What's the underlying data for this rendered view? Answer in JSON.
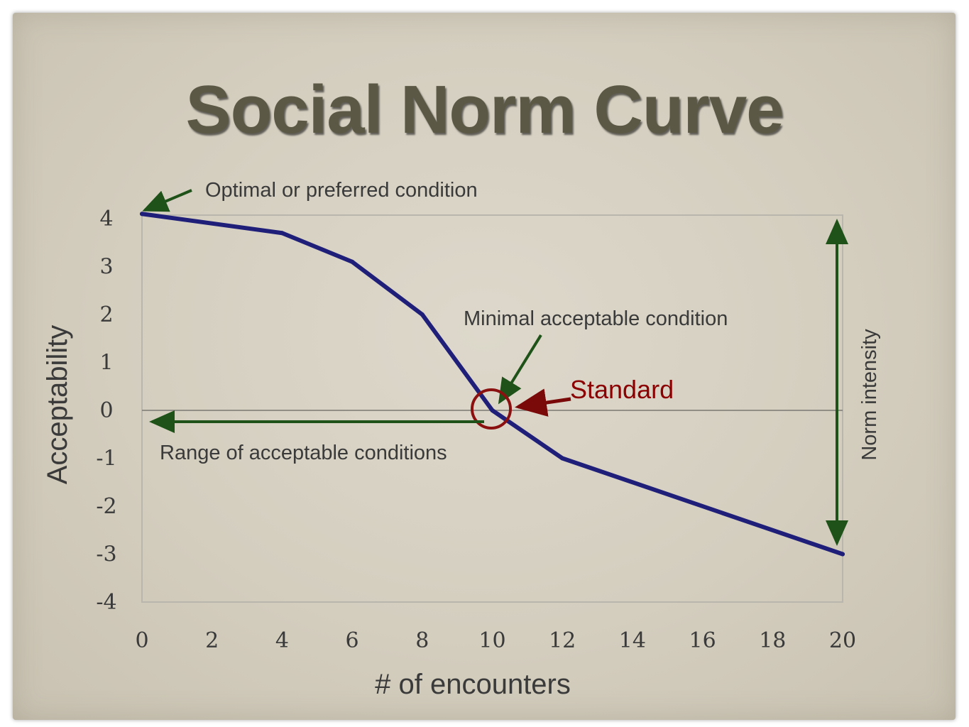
{
  "title": "Social Norm Curve",
  "chart_data": {
    "type": "line",
    "title": "Social Norm Curve",
    "xlabel": "# of encounters",
    "ylabel": "Acceptability",
    "xlim": [
      0,
      20
    ],
    "ylim": [
      -4,
      4
    ],
    "x_ticks": [
      0,
      2,
      4,
      6,
      8,
      10,
      12,
      14,
      16,
      18,
      20
    ],
    "y_ticks": [
      4,
      3,
      2,
      1,
      0,
      -1,
      -2,
      -3,
      -4
    ],
    "x_tick_labels": [
      "0",
      "2",
      "4",
      "6",
      "8",
      "10",
      "12",
      "14",
      "16",
      "18",
      "20"
    ],
    "y_tick_labels": [
      "4",
      "3",
      "2",
      "1",
      "0",
      "-1",
      "-2",
      "-3",
      "-4"
    ],
    "grid": false,
    "series": [
      {
        "x": [
          0,
          4,
          6,
          8,
          10,
          12,
          20
        ],
        "values": [
          4.1,
          3.7,
          3.1,
          2.0,
          0.0,
          -1.0,
          -3.0
        ]
      }
    ],
    "colors": {
      "line": "#1f1f7a",
      "arrow_green": "#1e5218",
      "arrow_red": "#7a0a0a"
    },
    "annotations": {
      "optimal": "Optimal or preferred condition",
      "minimal": "Minimal acceptable condition",
      "standard": "Standard",
      "range": "Range of acceptable conditions",
      "norm_intensity": "Norm intensity"
    }
  }
}
